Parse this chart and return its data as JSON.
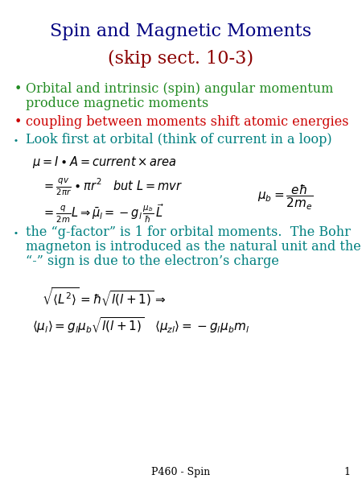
{
  "title_line1": "Spin and Magnetic Moments",
  "title_line2": "(skip sect. 10-3)",
  "title_color": "#000080",
  "title2_color": "#8B0000",
  "bg_color": "#ffffff",
  "bullet1_color": "#228B22",
  "bullet1_line1": "Orbital and intrinsic (spin) angular momentum",
  "bullet1_line2": "produce magnetic moments",
  "bullet2_color": "#cc0000",
  "bullet2_text": "coupling between moments shift atomic energies",
  "bullet3_color": "#008080",
  "bullet3_text": "Look first at orbital (think of current in a loop)",
  "bullet4_color": "#008080",
  "bullet4_line1": "the “g-factor” is 1 for orbital moments.  The Bohr",
  "bullet4_line2": "magneton is introduced as the natural unit and the",
  "bullet4_line3": "“-” sign is due to the electron’s charge",
  "footer_text": "P460 - Spin",
  "footer_page": "1"
}
